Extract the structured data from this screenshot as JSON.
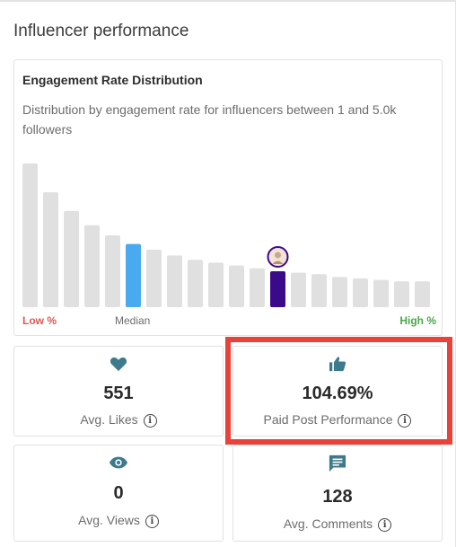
{
  "section_title": "Influencer performance",
  "chart": {
    "title": "Engagement Rate Distribution",
    "description": "Distribution by engagement rate for influencers between 1 and 5.0k followers",
    "low_label": "Low %",
    "median_label": "Median",
    "high_label": "High %"
  },
  "chart_data": {
    "type": "bar",
    "values": [
      100,
      80,
      67,
      57,
      50,
      44,
      40,
      36,
      33,
      31,
      29,
      27,
      25,
      24,
      23,
      21,
      20,
      19,
      18,
      18
    ],
    "median_index": 5,
    "highlight_index": 12,
    "colors": {
      "default": "#e0e0e0",
      "median": "#4aaaf0",
      "highlight": "#3b0a8a"
    }
  },
  "stats": {
    "likes": {
      "icon": "heart-icon",
      "value": "551",
      "label": "Avg. Likes"
    },
    "paid": {
      "icon": "thumbs-up-icon",
      "value": "104.69%",
      "label": "Paid Post Performance"
    },
    "views": {
      "icon": "eye-icon",
      "value": "0",
      "label": "Avg. Views"
    },
    "comments": {
      "icon": "comment-icon",
      "value": "128",
      "label": "Avg. Comments"
    }
  },
  "colors": {
    "icon": "#3d7a8c",
    "highlight_border": "#e8423a"
  }
}
